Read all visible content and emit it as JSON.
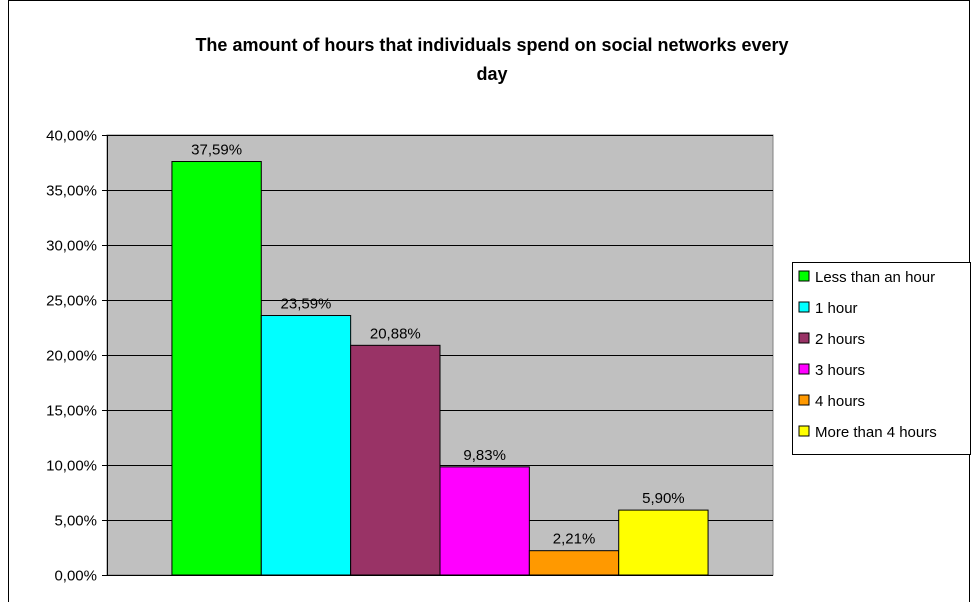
{
  "chart_data": {
    "type": "bar",
    "title": "The amount of hours that individuals spend on social networks every day",
    "title_lines": [
      "The amount of hours that individuals spend on social networks every",
      "day"
    ],
    "xlabel": "",
    "ylabel": "",
    "ylim": [
      0,
      40
    ],
    "y_ticks": [
      {
        "value": 0,
        "label": "0,00%"
      },
      {
        "value": 5,
        "label": "5,00%"
      },
      {
        "value": 10,
        "label": "10,00%"
      },
      {
        "value": 15,
        "label": "15,00%"
      },
      {
        "value": 20,
        "label": "20,00%"
      },
      {
        "value": 25,
        "label": "25,00%"
      },
      {
        "value": 30,
        "label": "30,00%"
      },
      {
        "value": 35,
        "label": "35,00%"
      },
      {
        "value": 40,
        "label": "40,00%"
      }
    ],
    "grid": true,
    "legend_position": "right",
    "plot_background": "#c0c0c0",
    "series": [
      {
        "name": "Less than an hour",
        "values": [
          37.59
        ],
        "label": "37,59%",
        "color": "#00ff00"
      },
      {
        "name": "1 hour",
        "values": [
          23.59
        ],
        "label": "23,59%",
        "color": "#00ffff"
      },
      {
        "name": "2 hours",
        "values": [
          20.88
        ],
        "label": "20,88%",
        "color": "#993366"
      },
      {
        "name": "3 hours",
        "values": [
          9.83
        ],
        "label": "9,83%",
        "color": "#ff00ff"
      },
      {
        "name": "4 hours",
        "values": [
          2.21
        ],
        "label": "2,21%",
        "color": "#ff9900"
      },
      {
        "name": "More than 4 hours",
        "values": [
          5.9
        ],
        "label": "5,90%",
        "color": "#ffff00"
      }
    ]
  }
}
